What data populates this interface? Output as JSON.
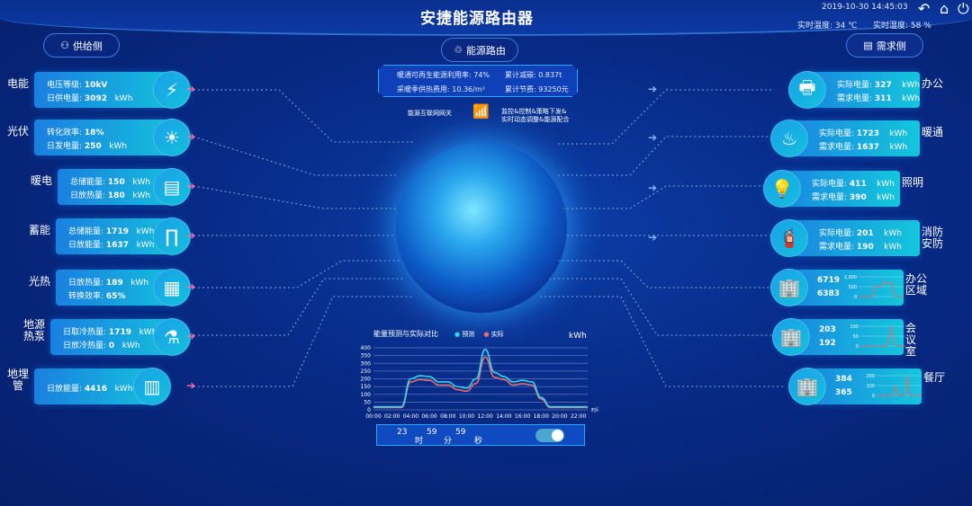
{
  "header": {
    "title": "安捷能源路由器",
    "datetime": "2019-10-30 14:45:03",
    "temp_label": "实时温度:",
    "temp": "34 ℃",
    "hum_label": "实时湿度:",
    "hum": "58 %",
    "icons": [
      "undo-icon",
      "home-icon",
      "power-icon"
    ]
  },
  "supply_label": "供给侧",
  "router_label": "能源路由",
  "demand_label": "需求侧",
  "info": {
    "renew": "暖通可再生能源利用率: 74%",
    "carbon": "累计减碳: 0.837t",
    "heatcost": "采暖季供热费用: 10.36/m²",
    "saving": "累计节费: 93250元"
  },
  "gateway": {
    "label": "能源互联网网关",
    "desc1": "监控&控制&策略下发&",
    "desc2": "实时动态调整&能源配合"
  },
  "supply": [
    {
      "name": "电能",
      "l1": "电压等级:",
      "v1": "10kV",
      "u1": "",
      "l2": "日供电量:",
      "v2": "3092",
      "u2": "kWh",
      "icon": "⚡"
    },
    {
      "name": "光伏",
      "l1": "转化效率:",
      "v1": "18%",
      "u1": "",
      "l2": "日发电量:",
      "v2": "250",
      "u2": "kWh",
      "icon": "☀"
    },
    {
      "name": "暖电",
      "l1": "总储能量:",
      "v1": "150",
      "u1": "kWh",
      "l2": "日放热量:",
      "v2": "180",
      "u2": "kWh",
      "icon": "▤"
    },
    {
      "name": "蓄能",
      "l1": "总储能量:",
      "v1": "1719",
      "u1": "kWh",
      "l2": "日放能量:",
      "v2": "1637",
      "u2": "kWh",
      "icon": "∏"
    },
    {
      "name": "光热",
      "l1": "日放热量:",
      "v1": "189",
      "u1": "kWh",
      "l2": "转换效率:",
      "v2": "65%",
      "u2": "",
      "icon": "▦"
    },
    {
      "name": "地源热泵",
      "l1": "日取冷热量:",
      "v1": "1719",
      "u1": "kWh",
      "l2": "日放冷热量:",
      "v2": "0",
      "u2": "kWh",
      "icon": "⚗"
    },
    {
      "name": "地埋管",
      "l1": "日放能量:",
      "v1": "4416",
      "u1": "kWh",
      "l2": "",
      "v2": "",
      "u2": "",
      "icon": "▥"
    }
  ],
  "demand": [
    {
      "name": "办公",
      "l1": "实际电量:",
      "v1": "327",
      "u1": "kWh",
      "l2": "需求电量:",
      "v2": "311",
      "u2": "kWh",
      "icon": "🖶"
    },
    {
      "name": "暖通",
      "l1": "实际电量:",
      "v1": "1723",
      "u1": "kWh",
      "l2": "需求电量:",
      "v2": "1637",
      "u2": "kWh",
      "icon": "♨"
    },
    {
      "name": "照明",
      "l1": "实际电量:",
      "v1": "411",
      "u1": "kWh",
      "l2": "需求电量:",
      "v2": "390",
      "u2": "kWh",
      "icon": "💡"
    },
    {
      "name": "消防安防",
      "l1": "实际电量:",
      "v1": "201",
      "u1": "kWh",
      "l2": "需求电量:",
      "v2": "190",
      "u2": "kWh",
      "icon": "🧯"
    }
  ],
  "areas": [
    {
      "name": "办公区域",
      "v1": "6719",
      "v2": "6383",
      "ticks": [
        "1,000",
        "500",
        "0"
      ],
      "max": 1000,
      "series": [
        0,
        0,
        0,
        0,
        0,
        0,
        0,
        550,
        520,
        500,
        580,
        760,
        700,
        700,
        680,
        0,
        0,
        0,
        0,
        0
      ]
    },
    {
      "name": "会议室",
      "v1": "203",
      "v2": "192",
      "ticks": [
        "100",
        "50",
        "0"
      ],
      "max": 100,
      "series": [
        0,
        0,
        0,
        0,
        0,
        0,
        0,
        0,
        0,
        0,
        0,
        0,
        30,
        100,
        30,
        0,
        0,
        0,
        0,
        0
      ]
    },
    {
      "name": "餐厅",
      "v1": "384",
      "v2": "365",
      "ticks": [
        "200",
        "100",
        "0"
      ],
      "max": 200,
      "series": [
        0,
        0,
        0,
        0,
        0,
        0,
        0,
        0,
        100,
        0,
        0,
        0,
        0,
        200,
        0,
        0,
        0,
        0,
        0,
        0
      ]
    }
  ],
  "chart_data": {
    "type": "line",
    "title": "能量预测与实际对比",
    "unit": "kWh",
    "xlabel": "时间",
    "x": [
      "00:00",
      "01:00",
      "02:00",
      "03:00",
      "04:00",
      "05:00",
      "06:00",
      "07:00",
      "08:00",
      "09:00",
      "10:00",
      "11:00",
      "12:00",
      "13:00",
      "14:00",
      "15:00",
      "16:00",
      "17:00",
      "18:00",
      "19:00",
      "20:00",
      "21:00",
      "22:00",
      "23:00"
    ],
    "xticks": [
      "00:00",
      "02:00",
      "04:00",
      "06:00",
      "08:00",
      "10:00",
      "12:00",
      "14:00",
      "16:00",
      "18:00",
      "20:00",
      "22:00"
    ],
    "yticks": [
      0,
      50,
      100,
      150,
      200,
      250,
      300,
      350,
      400
    ],
    "ylim": [
      0,
      400
    ],
    "series": [
      {
        "name": "预测",
        "color": "#2fd6f0",
        "values": [
          20,
          20,
          20,
          20,
          200,
          220,
          215,
          180,
          180,
          150,
          140,
          200,
          390,
          240,
          215,
          180,
          190,
          180,
          80,
          20,
          20,
          20,
          20,
          20
        ]
      },
      {
        "name": "实际",
        "color": "#f06a6a",
        "values": [
          15,
          15,
          15,
          15,
          180,
          195,
          190,
          160,
          160,
          130,
          120,
          170,
          340,
          210,
          195,
          160,
          168,
          160,
          70,
          15,
          15,
          15,
          15,
          15
        ]
      }
    ]
  },
  "timer": {
    "h": "23",
    "hl": "时",
    "m": "59",
    "ml": "分",
    "s": "59",
    "sl": "秒",
    "toggle_on": true
  }
}
